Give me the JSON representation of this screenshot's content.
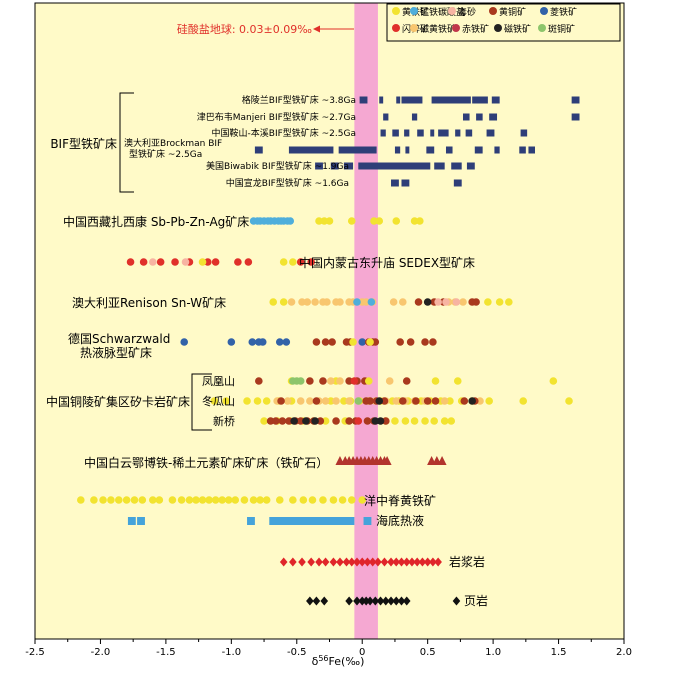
{
  "colors": {
    "plot_bg": "#FFFAC8",
    "band": "#F5A8D2",
    "pyrite": "#F2E330",
    "rhodochrosite": "#4FAEDB",
    "cinnabar": "#F7B4A2",
    "chalcopyrite": "#A9391E",
    "siderite": "#3262A8",
    "sphalerite": "#E0302A",
    "pyrrhotite": "#F8C66F",
    "hematite": "#C0364A",
    "magnetite": "#222222",
    "bornite": "#8DC56B",
    "bif": "#2E3E78",
    "hydro": "#45A3DA",
    "magma": "#E0252A",
    "shale": "#111111",
    "bayan": "#B2342D",
    "annot": "#E0302A"
  },
  "chart_data": {
    "type": "scatter",
    "xlabel": "δ56Fe(‰)",
    "xlim": [
      -2.5,
      2.0
    ],
    "ticks": [
      "-2.5",
      "-2.0",
      "-1.5",
      "-1.0",
      "-0.5",
      "0",
      "0.5",
      "1.0",
      "1.5",
      "2.0"
    ],
    "band": {
      "range": [
        -0.06,
        0.12
      ],
      "label": "硅酸盐地球: 0.03±0.09‰"
    },
    "legend": [
      {
        "label": "黄铁矿",
        "color": "pyrite"
      },
      {
        "label": "锰铁碳酸盐",
        "color": "rhodochrosite"
      },
      {
        "label": "毒砂",
        "color": "cinnabar"
      },
      {
        "label": "黄铜矿",
        "color": "chalcopyrite"
      },
      {
        "label": "菱铁矿",
        "color": "siderite"
      },
      {
        "label": "闪锌矿",
        "color": "sphalerite"
      },
      {
        "label": "磁黄铁矿",
        "color": "pyrrhotite"
      },
      {
        "label": "赤铁矿",
        "color": "hematite"
      },
      {
        "label": "磁铁矿",
        "color": "magnetite"
      },
      {
        "label": "斑铜矿",
        "color": "bornite"
      }
    ],
    "group_labels": {
      "bif": "BIF型铁矿床",
      "tongling": "中国铜陵矿集区矽卡岩矿床",
      "sw_line1": "德国Schwarzwald",
      "sw_line2": "热液脉型矿床"
    },
    "bif_rows": [
      {
        "label": "格陵兰BIF型铁矿床 ~3.8Ga",
        "bars": [
          [
            -0.02,
            0.04
          ],
          [
            0.13,
            0.16
          ],
          [
            0.26,
            0.29
          ],
          [
            0.3,
            0.46
          ],
          [
            0.53,
            0.83
          ],
          [
            0.84,
            0.96
          ],
          [
            0.99,
            1.05
          ],
          [
            1.6,
            1.66
          ]
        ]
      },
      {
        "label": "津巴布韦Manjeri BIF型铁矿床 ~2.7Ga",
        "bars": [
          [
            0.16,
            0.2
          ],
          [
            0.38,
            0.42
          ],
          [
            0.77,
            0.82
          ],
          [
            0.87,
            0.92
          ],
          [
            0.97,
            1.03
          ],
          [
            1.6,
            1.66
          ]
        ]
      },
      {
        "label": "中国鞍山-本溪BIF型铁矿床 ~2.5Ga",
        "bars": [
          [
            0.14,
            0.18
          ],
          [
            0.23,
            0.28
          ],
          [
            0.32,
            0.36
          ],
          [
            0.42,
            0.47
          ],
          [
            0.52,
            0.55
          ],
          [
            0.58,
            0.66
          ],
          [
            0.71,
            0.75
          ],
          [
            0.79,
            0.84
          ],
          [
            0.95,
            1.01
          ],
          [
            1.21,
            1.26
          ]
        ]
      },
      {
        "label": "澳大利亚Brockman BIF型铁矿床 ~2.5Ga",
        "bars": [
          [
            -0.82,
            -0.76
          ],
          [
            -0.56,
            -0.22
          ],
          [
            -0.18,
            0.11
          ],
          [
            0.25,
            0.29
          ],
          [
            0.33,
            0.36
          ],
          [
            0.49,
            0.55
          ],
          [
            0.64,
            0.69
          ],
          [
            0.86,
            0.92
          ],
          [
            1.01,
            1.05
          ],
          [
            1.2,
            1.25
          ],
          [
            1.27,
            1.32
          ]
        ]
      },
      {
        "label": "美国Biwabik BIF型铁矿床 ~1.9Ga",
        "bars": [
          [
            -0.36,
            -0.3
          ],
          [
            -0.24,
            -0.18
          ],
          [
            -0.14,
            -0.07
          ],
          [
            -0.03,
            0.52
          ],
          [
            0.55,
            0.63
          ],
          [
            0.68,
            0.76
          ],
          [
            0.8,
            0.86
          ]
        ]
      },
      {
        "label": "中国宣龙BIF型铁矿床 ~1.6Ga",
        "bars": [
          [
            0.22,
            0.28
          ],
          [
            0.3,
            0.36
          ],
          [
            0.7,
            0.76
          ]
        ]
      }
    ],
    "dot_rows": [
      {
        "label": "中国西藏扎西康 Sb-Pb-Zn-Ag矿床",
        "points": [
          {
            "c": "rhodochrosite",
            "x": [
              -0.83,
              -0.8,
              -0.78,
              -0.75,
              -0.72,
              -0.7,
              -0.67,
              -0.64,
              -0.62,
              -0.6,
              -0.57,
              -0.55
            ]
          },
          {
            "c": "pyrite",
            "x": [
              -0.33,
              -0.29,
              -0.25,
              -0.08,
              0.09,
              0.13,
              0.26,
              0.4,
              0.44
            ]
          }
        ]
      },
      {
        "label": "中国内蒙古东升庙 SEDEX型矿床",
        "points": [
          {
            "c": "sphalerite",
            "x": [
              -1.77,
              -1.67,
              -1.54,
              -1.43,
              -1.32,
              -1.18,
              -1.12,
              -0.95,
              -0.87,
              -0.47,
              -0.39
            ]
          },
          {
            "c": "cinnabar",
            "x": [
              -1.6,
              -1.35
            ]
          },
          {
            "c": "pyrite",
            "x": [
              -1.22,
              -0.6,
              -0.53
            ]
          }
        ]
      },
      {
        "label": "澳大利亚Renison Sn-W矿床",
        "points": [
          {
            "c": "pyrrhotite",
            "x": [
              -0.54,
              -0.46,
              -0.42,
              -0.36,
              -0.3,
              -0.27,
              -0.2,
              -0.17,
              -0.1,
              -0.07,
              0.0,
              0.03,
              0.08,
              0.24,
              0.31,
              0.66,
              0.71,
              0.77
            ]
          },
          {
            "c": "pyrite",
            "x": [
              -0.68,
              -0.6,
              0.96,
              1.05,
              1.12
            ]
          },
          {
            "c": "chalcopyrite",
            "x": [
              0.43,
              0.55,
              0.62,
              0.84,
              0.87
            ]
          },
          {
            "c": "magnetite",
            "x": [
              0.5
            ]
          },
          {
            "c": "cinnabar",
            "x": [
              0.58,
              0.64,
              0.72
            ]
          },
          {
            "c": "rhodochrosite",
            "x": [
              -0.04,
              0.07
            ]
          }
        ]
      },
      {
        "label": "德国Schwarzwald热液脉型矿床",
        "points": [
          {
            "c": "siderite",
            "x": [
              -1.36,
              -1.0,
              -0.84,
              -0.79,
              -0.76,
              -0.63,
              -0.58,
              0.0
            ]
          },
          {
            "c": "chalcopyrite",
            "x": [
              -0.35,
              -0.28,
              -0.23,
              -0.12,
              -0.09,
              0.05,
              0.08,
              0.1,
              0.29,
              0.37,
              0.48,
              0.54
            ]
          },
          {
            "c": "pyrite",
            "x": [
              -0.07,
              0.06
            ]
          }
        ]
      },
      {
        "label": "凤凰山",
        "points": [
          {
            "c": "chalcopyrite",
            "x": [
              -0.79,
              -0.4,
              -0.3,
              -0.1,
              -0.04,
              0.02
            ]
          },
          {
            "c": "pyrite",
            "x": [
              -0.54,
              -0.2,
              0.05,
              0.56,
              0.73,
              1.46
            ]
          },
          {
            "c": "bornite",
            "x": [
              -0.53,
              -0.5,
              -0.47
            ]
          },
          {
            "c": "pyrrhotite",
            "x": [
              -0.24,
              -0.17,
              0.21
            ]
          },
          {
            "c": "sphalerite",
            "x": [
              -0.06
            ]
          },
          {
            "c": "chalcopyrite",
            "x": [
              0.34
            ]
          }
        ]
      },
      {
        "label": "冬瓜山",
        "points": [
          {
            "c": "pyrite",
            "x": [
              -1.13,
              -1.04,
              -0.88,
              -0.8,
              -0.73,
              -0.64,
              -0.54,
              -0.24,
              -0.14,
              -0.09,
              -0.02,
              0.05,
              0.14,
              0.23,
              0.28,
              0.35,
              0.45,
              0.52,
              0.6,
              0.67,
              0.76,
              0.84,
              0.97,
              1.23,
              1.58
            ]
          },
          {
            "c": "pyrrhotite",
            "x": [
              -0.65,
              -0.57,
              -0.47,
              -0.4,
              -0.33,
              -0.28,
              -0.2,
              -0.1,
              0.1,
              0.18,
              0.26,
              0.33,
              0.4,
              0.48,
              0.63,
              0.9
            ]
          },
          {
            "c": "chalcopyrite",
            "x": [
              -0.62,
              -0.35,
              0.03,
              0.06,
              0.11,
              0.17,
              0.31,
              0.41,
              0.5,
              0.56,
              0.78,
              0.86
            ]
          },
          {
            "c": "magnetite",
            "x": [
              0.13,
              0.84
            ]
          },
          {
            "c": "bornite",
            "x": [
              -0.03
            ]
          }
        ]
      },
      {
        "label": "新桥",
        "points": [
          {
            "c": "pyrite",
            "x": [
              -0.75,
              -0.65,
              -0.55,
              -0.45,
              -0.37,
              -0.28,
              -0.13,
              0.18,
              0.25,
              0.33,
              0.4,
              0.48,
              0.55,
              0.63,
              0.68
            ]
          },
          {
            "c": "chalcopyrite",
            "x": [
              -0.7,
              -0.66,
              -0.61,
              -0.56,
              -0.51,
              -0.47,
              -0.42,
              -0.37,
              -0.32,
              -0.2,
              -0.1,
              -0.05,
              0.04,
              0.09,
              0.18
            ]
          },
          {
            "c": "magnetite",
            "x": [
              -0.52,
              -0.43,
              -0.36,
              0.1,
              0.14
            ]
          },
          {
            "c": "sphalerite",
            "x": [
              -0.03
            ]
          }
        ]
      }
    ],
    "bayan": {
      "label": "中国白云鄂博铁-稀土元素矿床矿床（铁矿石）",
      "x": [
        -0.17,
        -0.13,
        -0.1,
        -0.07,
        -0.04,
        -0.01,
        0.02,
        0.05,
        0.08,
        0.11,
        0.14,
        0.17,
        0.19,
        0.53,
        0.57,
        0.61
      ]
    },
    "mor": {
      "label": "洋中脊黄铁矿",
      "x": [
        -2.15,
        -2.05,
        -1.98,
        -1.92,
        -1.86,
        -1.8,
        -1.74,
        -1.68,
        -1.6,
        -1.55,
        -1.45,
        -1.38,
        -1.32,
        -1.27,
        -1.22,
        -1.17,
        -1.12,
        -1.07,
        -1.02,
        -0.97,
        -0.9,
        -0.83,
        -0.78,
        -0.73,
        -0.63,
        -0.53,
        -0.45,
        -0.38,
        -0.3,
        -0.22,
        -0.15,
        -0.08,
        0.0
      ]
    },
    "hydro": {
      "label": "海底热液",
      "bars": [
        [
          -1.79,
          -1.73
        ],
        [
          -1.72,
          -1.66
        ],
        [
          -0.88,
          -0.82
        ],
        [
          -0.71,
          -0.06
        ],
        [
          0.01,
          0.07
        ]
      ]
    },
    "magma": {
      "label": "岩浆岩",
      "x": [
        -0.6,
        -0.53,
        -0.46,
        -0.39,
        -0.33,
        -0.28,
        -0.22,
        -0.17,
        -0.12,
        -0.08,
        -0.04,
        0.0,
        0.04,
        0.08,
        0.12,
        0.17,
        0.22,
        0.26,
        0.3,
        0.34,
        0.38,
        0.42,
        0.46,
        0.5,
        0.54,
        0.58
      ]
    },
    "shale": {
      "label": "页岩",
      "x": [
        -0.4,
        -0.35,
        -0.29,
        -0.1,
        -0.04,
        0.0,
        0.03,
        0.06,
        0.1,
        0.14,
        0.18,
        0.22,
        0.26,
        0.3,
        0.34,
        0.72
      ]
    }
  }
}
